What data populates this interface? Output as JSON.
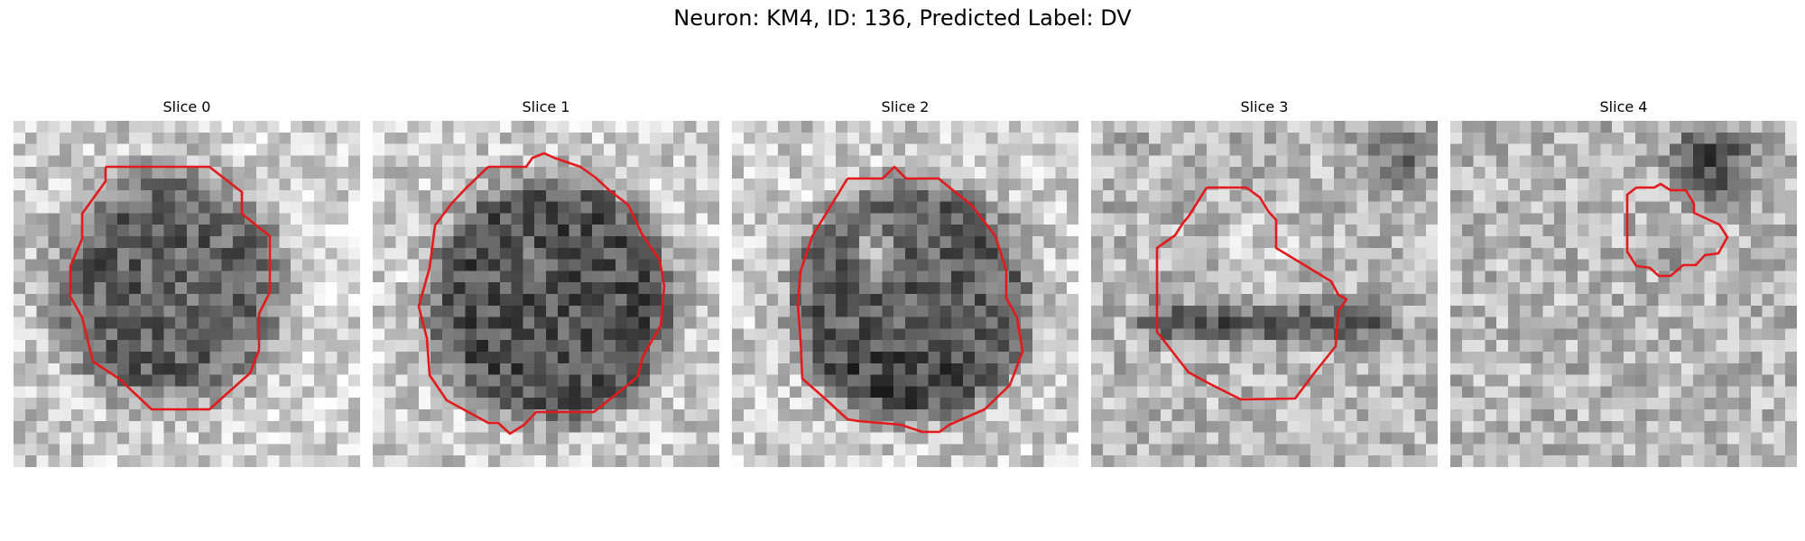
{
  "figure": {
    "title": "Neuron: KM4, ID: 136, Predicted Label: DV"
  },
  "panels": [
    {
      "title": "Slice 0",
      "contour_color": "#e31a1c",
      "image_content": "grayscale neuron patch with dark round nucleus outlined in red"
    },
    {
      "title": "Slice 1",
      "contour_color": "#e31a1c",
      "image_content": "grayscale neuron patch with dark round nucleus outlined in red"
    },
    {
      "title": "Slice 2",
      "contour_color": "#e31a1c",
      "image_content": "grayscale neuron patch with light center and dark lower region outlined in red"
    },
    {
      "title": "Slice 3",
      "contour_color": "#e31a1c",
      "image_content": "grayscale neuron patch with light upper region and dark band outlined in red"
    },
    {
      "title": "Slice 4",
      "contour_color": "#e31a1c",
      "image_content": "grayscale noisy patch with small outlined region at upper right"
    }
  ]
}
